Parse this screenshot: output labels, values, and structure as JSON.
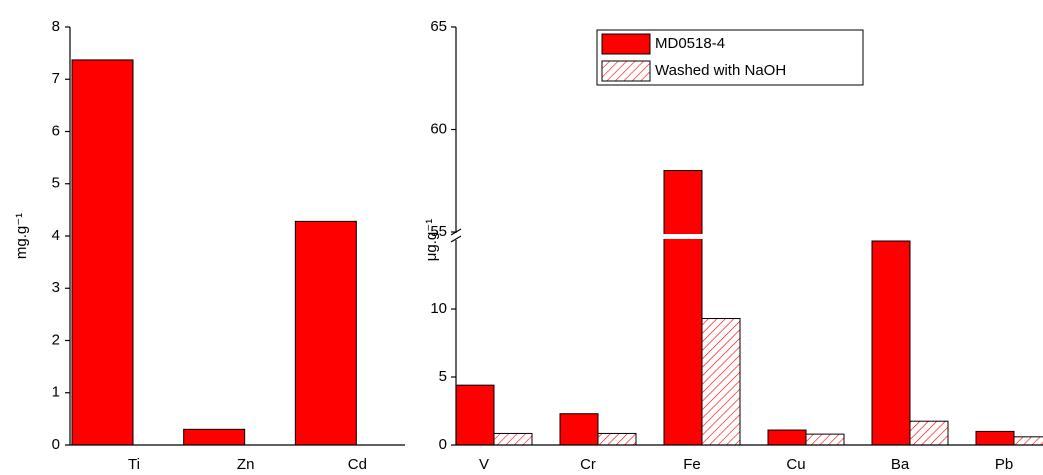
{
  "chart_data": [
    {
      "type": "bar",
      "ylabel": "mg.g⁻¹",
      "categories": [
        "Ti",
        "Zn",
        "Cd"
      ],
      "values": [
        7.37,
        0.3,
        4.28
      ],
      "color": "#ff0000",
      "ylim": [
        0,
        8
      ],
      "yticks": [
        0,
        1,
        2,
        3,
        4,
        5,
        6,
        7,
        8
      ]
    },
    {
      "type": "broken_bar",
      "ylabel": "μg.g⁻¹",
      "categories": [
        "V",
        "Cr",
        "Fe",
        "Cu",
        "Ba",
        "Pb"
      ],
      "series": [
        {
          "name": "MD0518-4",
          "color": "#ff0000",
          "pattern": "solid",
          "values": [
            4.4,
            2.3,
            58,
            1.1,
            15,
            1.0
          ]
        },
        {
          "name": "Washed with NaOH",
          "color": "#ff0000",
          "pattern": "hatch",
          "values": [
            0.85,
            0.85,
            9.3,
            0.8,
            1.75,
            0.6
          ]
        }
      ],
      "ylim_lower": [
        0,
        15
      ],
      "ylim_upper": [
        55,
        65
      ],
      "yticks": [
        0,
        5,
        10,
        55,
        60,
        65
      ],
      "legend": "top-center"
    }
  ]
}
